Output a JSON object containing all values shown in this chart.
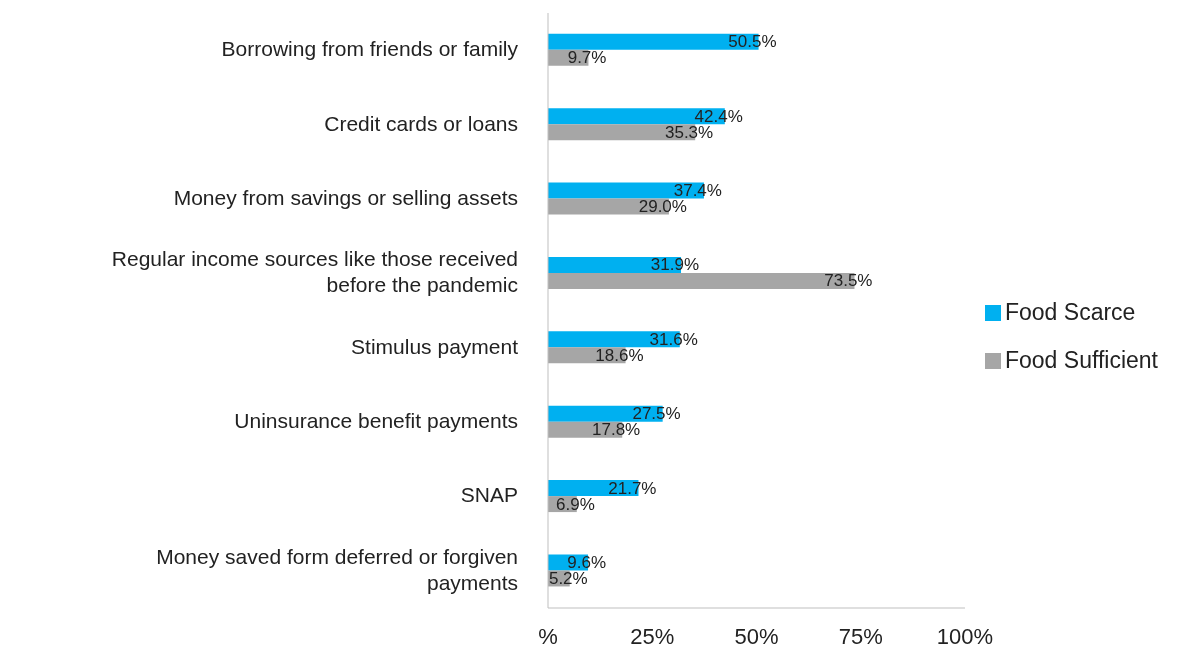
{
  "chart_data": {
    "type": "bar",
    "orientation": "horizontal",
    "categories": [
      "Borrowing from friends or family",
      "Credit cards or loans",
      "Money from savings or selling assets",
      "Regular income sources like those received before the pandemic",
      "Stimulus payment",
      "Uninsurance benefit payments",
      "SNAP",
      "Money saved form deferred or forgiven payments"
    ],
    "series": [
      {
        "name": "Food Scarce",
        "color": "#00b0f0",
        "values": [
          50.5,
          42.4,
          37.4,
          31.9,
          31.6,
          27.5,
          21.7,
          9.6
        ],
        "value_labels": [
          "50.5%",
          "42.4%",
          "37.4%",
          "31.9%",
          "31.6%",
          "27.5%",
          "21.7%",
          "9.6%"
        ]
      },
      {
        "name": "Food Sufficient",
        "color": "#a6a6a6",
        "values": [
          9.7,
          35.3,
          29.0,
          73.5,
          18.6,
          17.8,
          6.9,
          5.2
        ],
        "value_labels": [
          "9.7%",
          "35.3%",
          "29.0%",
          "73.5%",
          "18.6%",
          "17.8%",
          "6.9%",
          "5.2%"
        ]
      }
    ],
    "xlim": [
      0,
      100
    ],
    "xticks": [
      {
        "value": 0,
        "label": "%"
      },
      {
        "value": 25,
        "label": "25%"
      },
      {
        "value": 50,
        "label": "50%"
      },
      {
        "value": 75,
        "label": "75%"
      },
      {
        "value": 100,
        "label": "100%"
      }
    ],
    "grid": false,
    "legend": "right"
  }
}
